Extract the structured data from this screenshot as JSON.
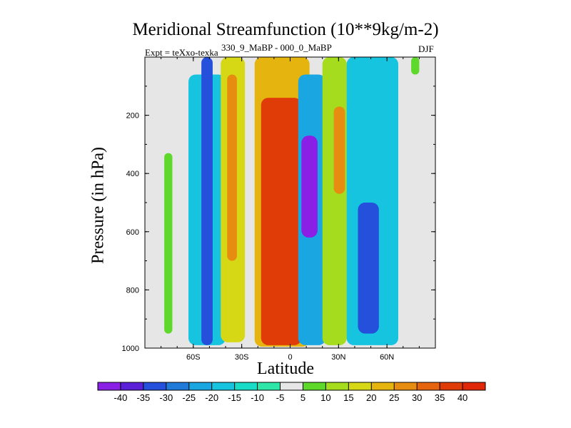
{
  "chart_data": {
    "type": "heatmap",
    "title": "Meridional Streamfunction (10**9kg/m-2)",
    "subtitle_left": "Expt = teXxo-texka",
    "subtitle_center": "330_9_MaBP - 000_0_MaBP",
    "subtitle_right": "DJF",
    "xlabel": "Latitude",
    "ylabel": "Pressure (in hPa)",
    "xlim": [
      -90,
      90
    ],
    "ylim": [
      1000,
      0
    ],
    "x_ticks": [
      {
        "value": -60,
        "label": "60S"
      },
      {
        "value": -30,
        "label": "30S"
      },
      {
        "value": 0,
        "label": "0"
      },
      {
        "value": 30,
        "label": "30N"
      },
      {
        "value": 60,
        "label": "60N"
      }
    ],
    "y_ticks": [
      {
        "value": 200,
        "label": "200"
      },
      {
        "value": 400,
        "label": "400"
      },
      {
        "value": 600,
        "label": "600"
      },
      {
        "value": 800,
        "label": "800"
      },
      {
        "value": 1000,
        "label": "1000"
      }
    ],
    "background_color": "#e6e6e6",
    "colorbar": {
      "levels": [
        "-40",
        "-35",
        "-30",
        "-25",
        "-20",
        "-15",
        "-10",
        "-5",
        "5",
        "10",
        "15",
        "20",
        "25",
        "30",
        "35",
        "40"
      ],
      "colors": [
        "#8a1fe6",
        "#5a20d8",
        "#2450dc",
        "#1f7ad8",
        "#1aa6e0",
        "#16c4e0",
        "#18dcc6",
        "#2ee6a8",
        "#e6e6e6",
        "#5ed82a",
        "#a6dc1e",
        "#d6d816",
        "#e6b40e",
        "#e68c10",
        "#e6640e",
        "#e03c08",
        "#e02808"
      ]
    },
    "regions": [
      {
        "name": "sh-polar-positive-band",
        "value": 10,
        "lat": [
          -78,
          -73
        ],
        "p": [
          330,
          950
        ]
      },
      {
        "name": "sh-midlat-negative-outer",
        "value": -15,
        "lat": [
          -63,
          -40
        ],
        "p": [
          60,
          990
        ]
      },
      {
        "name": "sh-midlat-negative-core",
        "value": -30,
        "lat": [
          -55,
          -48
        ],
        "p": [
          0,
          990
        ]
      },
      {
        "name": "sh-subtropic-positive-outer",
        "value": 20,
        "lat": [
          -43,
          -28
        ],
        "p": [
          0,
          980
        ]
      },
      {
        "name": "sh-subtropic-positive-core",
        "value": 30,
        "lat": [
          -39,
          -33
        ],
        "p": [
          60,
          700
        ]
      },
      {
        "name": "equatorial-positive-outer",
        "value": 25,
        "lat": [
          -22,
          12
        ],
        "p": [
          0,
          995
        ]
      },
      {
        "name": "equatorial-positive-core",
        "value": 40,
        "lat": [
          -18,
          7
        ],
        "p": [
          140,
          990
        ]
      },
      {
        "name": "nh-tropic-negative-outer",
        "value": -20,
        "lat": [
          5,
          22
        ],
        "p": [
          60,
          990
        ]
      },
      {
        "name": "nh-tropic-negative-core",
        "value": -40,
        "lat": [
          7,
          17
        ],
        "p": [
          270,
          620
        ]
      },
      {
        "name": "nh-subtropic-positive-outer",
        "value": 15,
        "lat": [
          20,
          35
        ],
        "p": [
          0,
          990
        ]
      },
      {
        "name": "nh-subtropic-positive-core",
        "value": 30,
        "lat": [
          27,
          34
        ],
        "p": [
          170,
          470
        ]
      },
      {
        "name": "nh-midlat-negative-outer",
        "value": -15,
        "lat": [
          35,
          67
        ],
        "p": [
          0,
          990
        ]
      },
      {
        "name": "nh-midlat-negative-core",
        "value": -30,
        "lat": [
          42,
          55
        ],
        "p": [
          500,
          950
        ]
      },
      {
        "name": "nh-polar-positive-patch",
        "value": 10,
        "lat": [
          75,
          80
        ],
        "p": [
          0,
          60
        ]
      }
    ]
  }
}
